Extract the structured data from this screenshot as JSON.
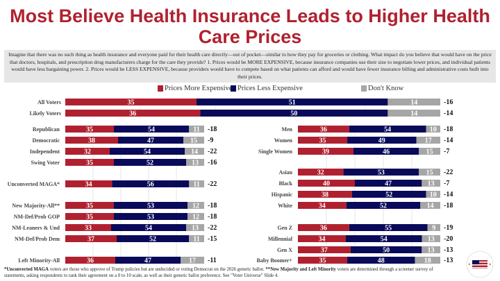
{
  "title": "Most Believe Health Insurance Leads to Higher Health Care Prices",
  "question": "Imagine that there was no such thing as health insurance and everyone paid for their health care directly—out of pocket—similar to how they pay for groceries or clothing. What impact do you believe that would have on the price that doctors, hospitals, and prescription drug manufacturers charge for the care they provide?  1.  Prices would be MORE EXPENSIVE, because insurance companies use their size to negotiate lower prices, and individual patients would have less bargaining power. 2. Prices would be LESS EXPENSIVE, because providers would have to compete based on what patients can afford and would have fewer insurance billing and administrative costs built into their prices.",
  "footnote_bold1": "*Unconverted MAGA",
  "footnote_text1": " voters are those who approve of Trump policies but are undecided or voting Democrat on the 2026 generic ballot. ",
  "footnote_bold2": "**New Majority and Left Minority",
  "footnote_text2": " voters are determined through a screener survey of statements, asking respondents to rank their agreement on a 0 to 10 scale, as well as their generic ballot preference. See \"Voter Universe\" Slide 4.",
  "logo_text": "America's New Majority Project",
  "colors": {
    "more": "#b0212f",
    "less": "#0a0a5a",
    "dk": "#a6a6a6"
  },
  "chart_data": {
    "type": "bar",
    "stacked": true,
    "orientation": "horizontal",
    "legend": [
      "Prices More Expensive",
      "Prices Less Expensive",
      "Don't Know"
    ],
    "legend_placement": "top",
    "xlim": [
      0,
      100
    ],
    "panels": [
      {
        "name": "top",
        "rows": [
          {
            "label": "All Voters",
            "values": [
              35,
              51,
              14
            ],
            "diff": "-16"
          },
          {
            "label": "Likely Voters",
            "values": [
              36,
              50,
              14
            ],
            "diff": "-14"
          }
        ]
      },
      {
        "name": "left",
        "rows": [
          {
            "label": "Republican",
            "values": [
              35,
              54,
              11
            ],
            "diff": "-18"
          },
          {
            "label": "Democratic",
            "values": [
              38,
              47,
              15
            ],
            "diff": "-9"
          },
          {
            "label": "Independent",
            "values": [
              32,
              54,
              14
            ],
            "diff": "-22"
          },
          {
            "label": "Swing Voter",
            "values": [
              35,
              52,
              13
            ],
            "diff": "-16"
          },
          {
            "label": "Unconverted MAGA*",
            "values": [
              34,
              56,
              11
            ],
            "diff": "-22"
          },
          {
            "label": "New Majority-All**",
            "values": [
              35,
              53,
              12
            ],
            "diff": "-18"
          },
          {
            "label": "NM-Def/Prob GOP",
            "values": [
              35,
              53,
              12
            ],
            "diff": "-18"
          },
          {
            "label": "NM-Leaners & Und",
            "values": [
              33,
              54,
              13
            ],
            "diff": "-22"
          },
          {
            "label": "NM-Def/Prob Dem",
            "values": [
              37,
              52,
              11
            ],
            "diff": "-15"
          },
          {
            "label": "Left Minority-All",
            "values": [
              36,
              47,
              17
            ],
            "diff": "-11"
          }
        ]
      },
      {
        "name": "right",
        "rows": [
          {
            "label": "Men",
            "values": [
              36,
              54,
              10
            ],
            "diff": "-18"
          },
          {
            "label": "Women",
            "values": [
              35,
              49,
              17
            ],
            "diff": "-14"
          },
          {
            "label": "Single Women",
            "values": [
              39,
              46,
              15
            ],
            "diff": "-7"
          },
          {
            "label": "Asian",
            "values": [
              32,
              53,
              15
            ],
            "diff": "-22"
          },
          {
            "label": "Black",
            "values": [
              40,
              47,
              13
            ],
            "diff": "-7"
          },
          {
            "label": "Hispanic",
            "values": [
              38,
              52,
              10
            ],
            "diff": "-14"
          },
          {
            "label": "White",
            "values": [
              34,
              52,
              14
            ],
            "diff": "-18"
          },
          {
            "label": "Gen Z",
            "values": [
              36,
              55,
              9
            ],
            "diff": "-19"
          },
          {
            "label": "Millennial",
            "values": [
              34,
              54,
              13
            ],
            "diff": "-20"
          },
          {
            "label": "Gen X",
            "values": [
              37,
              50,
              13
            ],
            "diff": "-13"
          },
          {
            "label": "Baby Boomer+",
            "values": [
              35,
              48,
              18
            ],
            "diff": "-13"
          }
        ]
      }
    ]
  }
}
